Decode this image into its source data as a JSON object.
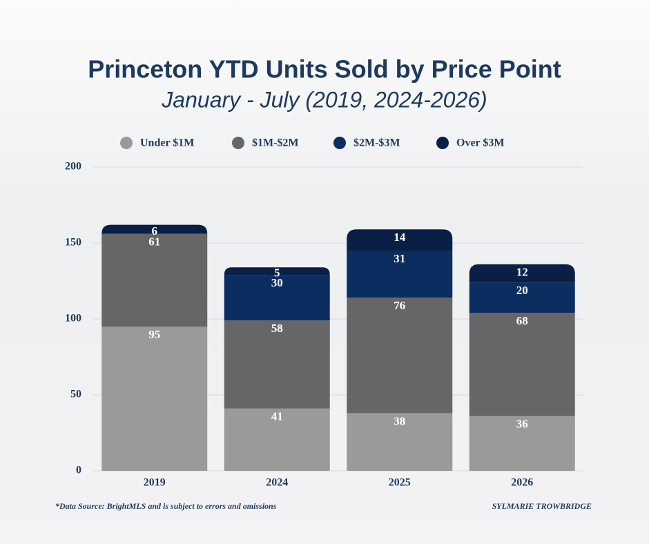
{
  "chart_data": {
    "type": "stacked_bar",
    "title": "Princeton YTD Units Sold by Price Point",
    "subtitle": "January - July (2019, 2024-2026)",
    "categories": [
      "2019",
      "2024",
      "2025",
      "2026"
    ],
    "series": [
      {
        "name": "Under $1M",
        "color": "#9a9a9a",
        "values": [
          95,
          41,
          38,
          36
        ]
      },
      {
        "name": "$1M-$2M",
        "color": "#666666",
        "values": [
          61,
          58,
          76,
          68
        ]
      },
      {
        "name": "$2M-$3M",
        "color": "#0c2d60",
        "values": [
          null,
          30,
          31,
          20
        ]
      },
      {
        "name": "Over $3M",
        "color": "#0a1f45",
        "values": [
          6,
          5,
          14,
          12
        ]
      }
    ],
    "ylim": [
      0,
      200
    ],
    "yticks": [
      0,
      50,
      100,
      150,
      200
    ],
    "grid": true,
    "legend_position": "top",
    "footnote": "*Data Source: BrightMLS and is subject to errors and omissions",
    "credit": "SYLMARIE TROWBRIDGE"
  }
}
